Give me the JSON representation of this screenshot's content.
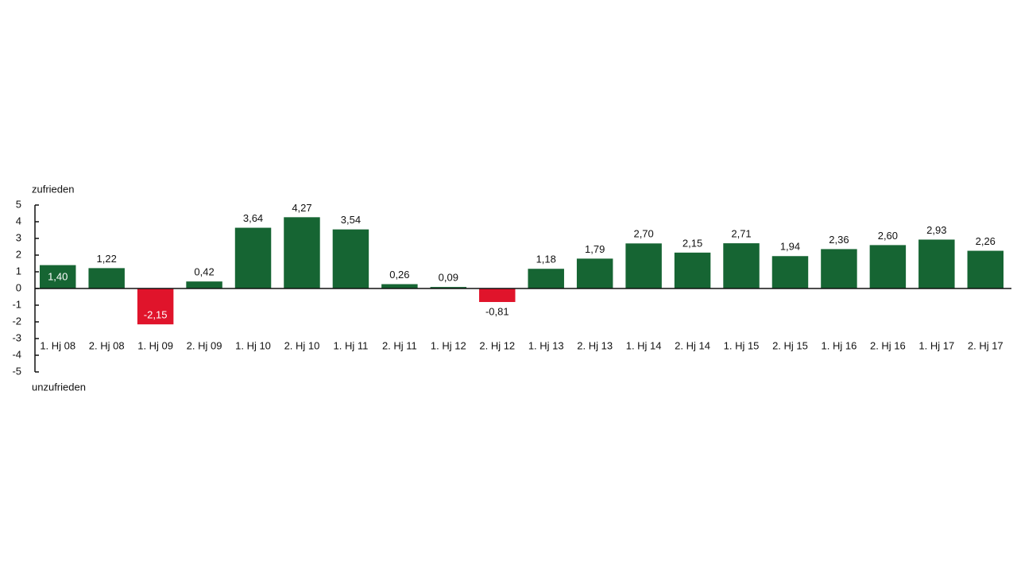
{
  "chart_data": {
    "type": "bar",
    "annotations": [
      "zufrieden",
      "unzufrieden"
    ],
    "categories": [
      "1. Hj 08",
      "2. Hj 08",
      "1. Hj 09",
      "2. Hj 09",
      "1. Hj 10",
      "2. Hj 10",
      "1. Hj 11",
      "2. Hj 11",
      "1. Hj 12",
      "2. Hj 12",
      "1. Hj 13",
      "2. Hj 13",
      "1. Hj 14",
      "2. Hj 14",
      "1. Hj 15",
      "2. Hj 15",
      "1. Hj 16",
      "2. Hj 16",
      "1. Hj 17",
      "2. Hj 17"
    ],
    "values": [
      1.4,
      1.22,
      -2.15,
      0.42,
      3.64,
      4.27,
      3.54,
      0.26,
      0.09,
      -0.81,
      1.18,
      1.79,
      2.7,
      2.15,
      2.71,
      1.94,
      2.36,
      2.6,
      2.93,
      2.26
    ],
    "value_labels": [
      "1,40",
      "1,22",
      "-2,15",
      "0,42",
      "3,64",
      "4,27",
      "3,54",
      "0,26",
      "0,09",
      "-0,81",
      "1,18",
      "1,79",
      "2,70",
      "2,15",
      "2,71",
      "1,94",
      "2,36",
      "2,60",
      "2,93",
      "2,26"
    ],
    "color": "#166533",
    "negative_color": "#e0142b",
    "ylim": [
      -5,
      5
    ],
    "yticks": [
      -5,
      -4,
      -3,
      -2,
      -1,
      0,
      1,
      2,
      3,
      4,
      5
    ]
  }
}
